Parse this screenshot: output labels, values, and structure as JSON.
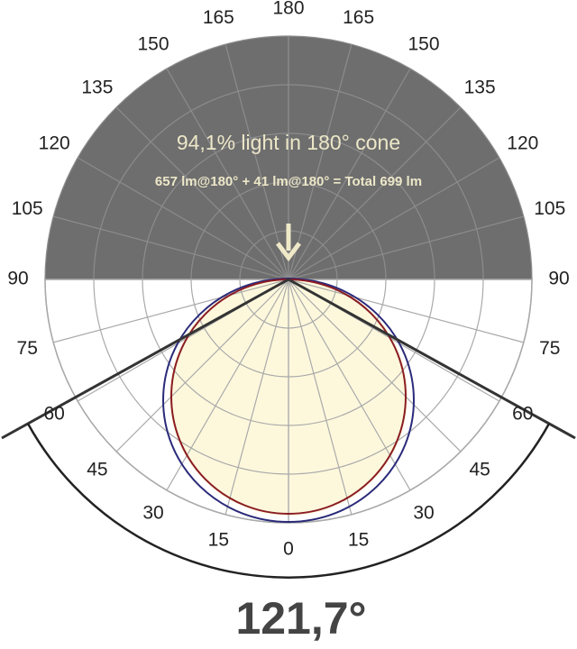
{
  "scale": {
    "left": [
      15,
      30,
      45,
      60,
      75,
      90,
      105,
      120,
      135,
      150,
      165
    ],
    "right": [
      15,
      30,
      45,
      60,
      75,
      90,
      105,
      120,
      135,
      150,
      165
    ],
    "bottom": 0,
    "top": 180
  },
  "headline": "94,1% light in 180° cone",
  "flux": "657 lm@180° + 41 lm@180° = Total 699 lm",
  "beam_angle": "121,7°"
}
